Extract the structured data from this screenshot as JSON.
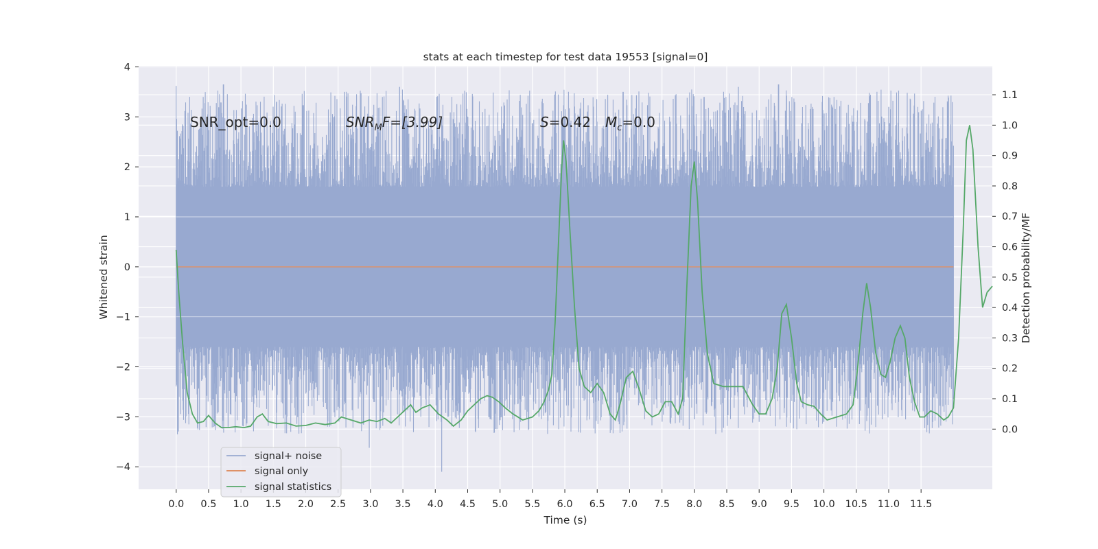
{
  "chart_data": {
    "type": "line",
    "title": "stats at each timestep for test data 19553 [signal=0]",
    "xlabel": "Time (s)",
    "ylabel_left": "Whitened strain",
    "ylabel_right": "Detection probability/MF",
    "xlim": [
      -0.58,
      12.6
    ],
    "ylim_left": [
      -4.45,
      4.02
    ],
    "ylim_right": [
      -0.198,
      1.195
    ],
    "x_ticks": [
      "0.0",
      "0.5",
      "1.0",
      "1.5",
      "2.0",
      "2.5",
      "3.0",
      "3.5",
      "4.0",
      "4.5",
      "5.0",
      "5.5",
      "6.0",
      "6.5",
      "7.0",
      "7.5",
      "8.0",
      "8.5",
      "9.0",
      "9.5",
      "10.0",
      "10.5",
      "11.0",
      "11.5"
    ],
    "y_ticks_left": [
      "−4",
      "−3",
      "−2",
      "−1",
      "0",
      "1",
      "2",
      "3",
      "4"
    ],
    "y_ticks_right": [
      "0.0",
      "0.1",
      "0.2",
      "0.3",
      "0.4",
      "0.5",
      "0.6",
      "0.7",
      "0.8",
      "0.9",
      "1.0",
      "1.1"
    ],
    "grid": true,
    "legend_position": "lower-left",
    "annotations": {
      "snr_opt": "SNR_opt=0.0",
      "snr_mf_main": "SNR",
      "snr_mf_sub": "M",
      "snr_mf_rest": "F=[3.99]",
      "s_main": "S",
      "s_rest": "=0.42",
      "mc_main": "M",
      "mc_sub": "c",
      "mc_rest": "=0.0"
    },
    "series": [
      {
        "name": "signal+ noise",
        "axis": "left",
        "color": "#98a9d0",
        "x_range": [
          0.0,
          12.0
        ],
        "envelope_upper_typical": 1.6,
        "envelope_lower_typical": -1.6,
        "peak_max": 3.65,
        "trough_min": -4.1,
        "peaks": [
          [
            0.0,
            3.62
          ],
          [
            0.73,
            3.65
          ],
          [
            1.55,
            3.3
          ],
          [
            2.6,
            3.5
          ],
          [
            3.45,
            3.6
          ],
          [
            6.9,
            3.5
          ],
          [
            8.15,
            3.4
          ],
          [
            8.68,
            3.6
          ],
          [
            9.3,
            3.65
          ],
          [
            11.0,
            3.2
          ],
          [
            11.45,
            3.2
          ]
        ],
        "troughs": [
          [
            0.02,
            -3.35
          ],
          [
            0.8,
            -3.2
          ],
          [
            2.98,
            -3.62
          ],
          [
            4.1,
            -4.1
          ],
          [
            5.6,
            -3.0
          ],
          [
            8.0,
            -3.05
          ],
          [
            9.0,
            -3.1
          ],
          [
            10.0,
            -3.1
          ],
          [
            10.9,
            -3.05
          ],
          [
            11.68,
            -3.1
          ]
        ]
      },
      {
        "name": "signal only",
        "axis": "left",
        "color": "#dd8452",
        "x": [
          0.0,
          12.0
        ],
        "y": [
          0.0,
          0.0
        ]
      },
      {
        "name": "signal statistics",
        "axis": "right",
        "color": "#55a868",
        "points": [
          [
            0.0,
            0.59
          ],
          [
            0.04,
            0.45
          ],
          [
            0.1,
            0.28
          ],
          [
            0.17,
            0.12
          ],
          [
            0.25,
            0.05
          ],
          [
            0.33,
            0.02
          ],
          [
            0.42,
            0.025
          ],
          [
            0.5,
            0.045
          ],
          [
            0.6,
            0.02
          ],
          [
            0.7,
            0.005
          ],
          [
            0.8,
            0.005
          ],
          [
            0.92,
            0.008
          ],
          [
            1.05,
            0.005
          ],
          [
            1.15,
            0.01
          ],
          [
            1.25,
            0.04
          ],
          [
            1.33,
            0.05
          ],
          [
            1.42,
            0.025
          ],
          [
            1.55,
            0.018
          ],
          [
            1.7,
            0.02
          ],
          [
            1.85,
            0.01
          ],
          [
            2.0,
            0.012
          ],
          [
            2.15,
            0.02
          ],
          [
            2.3,
            0.015
          ],
          [
            2.45,
            0.02
          ],
          [
            2.55,
            0.04
          ],
          [
            2.7,
            0.03
          ],
          [
            2.85,
            0.02
          ],
          [
            2.98,
            0.03
          ],
          [
            3.1,
            0.025
          ],
          [
            3.22,
            0.035
          ],
          [
            3.32,
            0.02
          ],
          [
            3.42,
            0.04
          ],
          [
            3.52,
            0.06
          ],
          [
            3.62,
            0.08
          ],
          [
            3.7,
            0.055
          ],
          [
            3.8,
            0.07
          ],
          [
            3.92,
            0.08
          ],
          [
            4.05,
            0.05
          ],
          [
            4.18,
            0.03
          ],
          [
            4.28,
            0.01
          ],
          [
            4.4,
            0.03
          ],
          [
            4.5,
            0.06
          ],
          [
            4.6,
            0.08
          ],
          [
            4.7,
            0.1
          ],
          [
            4.8,
            0.11
          ],
          [
            4.88,
            0.105
          ],
          [
            4.98,
            0.09
          ],
          [
            5.08,
            0.07
          ],
          [
            5.2,
            0.05
          ],
          [
            5.35,
            0.03
          ],
          [
            5.5,
            0.04
          ],
          [
            5.6,
            0.06
          ],
          [
            5.68,
            0.09
          ],
          [
            5.75,
            0.13
          ],
          [
            5.8,
            0.18
          ],
          [
            5.85,
            0.35
          ],
          [
            5.9,
            0.6
          ],
          [
            5.95,
            0.85
          ],
          [
            5.98,
            0.95
          ],
          [
            6.02,
            0.88
          ],
          [
            6.08,
            0.65
          ],
          [
            6.15,
            0.4
          ],
          [
            6.22,
            0.2
          ],
          [
            6.3,
            0.14
          ],
          [
            6.4,
            0.12
          ],
          [
            6.5,
            0.15
          ],
          [
            6.6,
            0.12
          ],
          [
            6.7,
            0.05
          ],
          [
            6.78,
            0.03
          ],
          [
            6.85,
            0.08
          ],
          [
            6.95,
            0.17
          ],
          [
            7.05,
            0.19
          ],
          [
            7.15,
            0.13
          ],
          [
            7.25,
            0.06
          ],
          [
            7.35,
            0.04
          ],
          [
            7.45,
            0.05
          ],
          [
            7.55,
            0.09
          ],
          [
            7.65,
            0.09
          ],
          [
            7.75,
            0.05
          ],
          [
            7.82,
            0.1
          ],
          [
            7.88,
            0.45
          ],
          [
            7.95,
            0.8
          ],
          [
            8.0,
            0.88
          ],
          [
            8.05,
            0.75
          ],
          [
            8.12,
            0.45
          ],
          [
            8.2,
            0.25
          ],
          [
            8.3,
            0.15
          ],
          [
            8.45,
            0.14
          ],
          [
            8.6,
            0.14
          ],
          [
            8.75,
            0.14
          ],
          [
            8.9,
            0.08
          ],
          [
            9.0,
            0.05
          ],
          [
            9.1,
            0.05
          ],
          [
            9.2,
            0.1
          ],
          [
            9.28,
            0.2
          ],
          [
            9.35,
            0.38
          ],
          [
            9.42,
            0.41
          ],
          [
            9.5,
            0.3
          ],
          [
            9.58,
            0.15
          ],
          [
            9.65,
            0.09
          ],
          [
            9.75,
            0.08
          ],
          [
            9.85,
            0.075
          ],
          [
            9.95,
            0.05
          ],
          [
            10.05,
            0.03
          ],
          [
            10.2,
            0.04
          ],
          [
            10.35,
            0.05
          ],
          [
            10.45,
            0.08
          ],
          [
            10.52,
            0.2
          ],
          [
            10.6,
            0.38
          ],
          [
            10.66,
            0.48
          ],
          [
            10.72,
            0.4
          ],
          [
            10.8,
            0.25
          ],
          [
            10.88,
            0.18
          ],
          [
            10.95,
            0.17
          ],
          [
            11.02,
            0.22
          ],
          [
            11.1,
            0.3
          ],
          [
            11.18,
            0.34
          ],
          [
            11.25,
            0.3
          ],
          [
            11.32,
            0.17
          ],
          [
            11.4,
            0.09
          ],
          [
            11.48,
            0.04
          ],
          [
            11.55,
            0.04
          ],
          [
            11.65,
            0.06
          ],
          [
            11.75,
            0.05
          ],
          [
            11.85,
            0.03
          ],
          [
            11.92,
            0.04
          ],
          [
            12.0,
            0.07
          ],
          [
            12.08,
            0.3
          ],
          [
            12.15,
            0.65
          ],
          [
            12.2,
            0.95
          ],
          [
            12.25,
            1.0
          ],
          [
            12.3,
            0.92
          ],
          [
            12.38,
            0.6
          ],
          [
            12.45,
            0.4
          ],
          [
            12.52,
            0.45
          ],
          [
            12.6,
            0.47
          ]
        ]
      }
    ]
  }
}
